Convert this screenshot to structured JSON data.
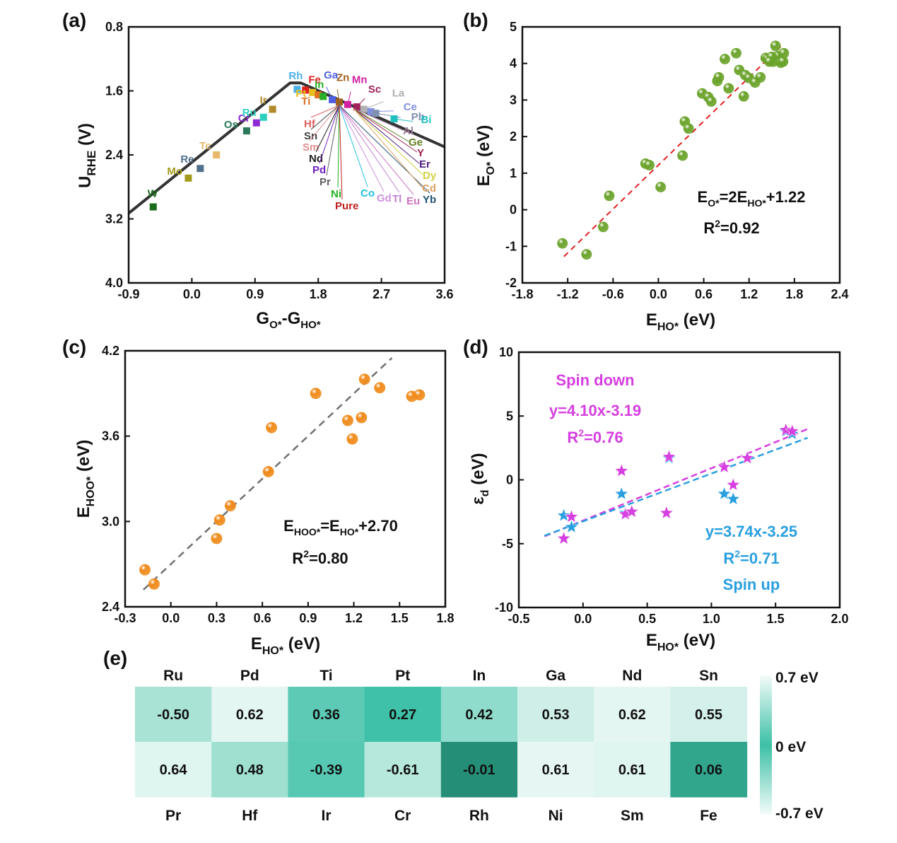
{
  "panel_labels": [
    "(a)",
    "(b)",
    "(c)",
    "(d)",
    "(e)"
  ],
  "chart_data": [
    {
      "panel": "(a)",
      "type": "line",
      "xlabel_main": "G",
      "xlabel_sub1": "O*",
      "xlabel_mid": "-G",
      "xlabel_sub2": "HO*",
      "ylabel_main": "U",
      "ylabel_sub": "RHE",
      "ylabel_unit": " (V)",
      "xlim": [
        -0.9,
        3.6
      ],
      "ylim": [
        4.0,
        0.8
      ],
      "y_inverted": true,
      "xticks": [
        "-0.9",
        "0.0",
        "0.9",
        "1.8",
        "2.7",
        "3.6"
      ],
      "yticks": [
        "0.8",
        "1.6",
        "2.4",
        "3.2",
        "4.0"
      ],
      "volcano_line": [
        [
          -0.9,
          3.13
        ],
        [
          1.4,
          1.5
        ],
        [
          1.55,
          1.5
        ],
        [
          3.6,
          2.3
        ]
      ],
      "points": [
        {
          "name": "W",
          "x": -0.55,
          "y": 3.05,
          "color": "#1a6b1a"
        },
        {
          "name": "Mo",
          "x": -0.05,
          "y": 2.69,
          "color": "#a39a1e"
        },
        {
          "name": "Re",
          "x": 0.12,
          "y": 2.57,
          "color": "#4f6f8a"
        },
        {
          "name": "Tc",
          "x": 0.35,
          "y": 2.4,
          "color": "#e8b86a"
        },
        {
          "name": "Os",
          "x": 0.78,
          "y": 2.1,
          "color": "#2a7a5a"
        },
        {
          "name": "Cr",
          "x": 0.92,
          "y": 2.0,
          "color": "#8e2ad6"
        },
        {
          "name": "Ru",
          "x": 1.02,
          "y": 1.93,
          "color": "#2fcfbf"
        },
        {
          "name": "Ir",
          "x": 1.15,
          "y": 1.83,
          "color": "#b08a2a"
        },
        {
          "name": "Rh",
          "x": 1.5,
          "y": 1.58,
          "color": "#4ab0e8"
        },
        {
          "name": "Fe",
          "x": 1.62,
          "y": 1.59,
          "color": "#e02020"
        },
        {
          "name": "Pt",
          "x": 1.72,
          "y": 1.62,
          "color": "#e8c020"
        },
        {
          "name": "Ti",
          "x": 1.8,
          "y": 1.65,
          "color": "#e07020"
        },
        {
          "name": "In",
          "x": 1.87,
          "y": 1.67,
          "color": "#28b028"
        },
        {
          "name": "Ga",
          "x": 2.0,
          "y": 1.71,
          "color": "#5060e0"
        },
        {
          "name": "Zn",
          "x": 2.1,
          "y": 1.74,
          "color": "#a06020"
        },
        {
          "name": "Mn",
          "x": 2.22,
          "y": 1.77,
          "color": "#d020a0"
        },
        {
          "name": "Sc",
          "x": 2.35,
          "y": 1.8,
          "color": "#a0205a"
        },
        {
          "name": "La",
          "x": 2.45,
          "y": 1.83,
          "color": "#b0b0b0"
        },
        {
          "name": "Ce",
          "x": 2.55,
          "y": 1.86,
          "color": "#8090e0"
        },
        {
          "name": "Pb",
          "x": 2.62,
          "y": 1.88,
          "color": "#8090b0"
        },
        {
          "name": "Bi",
          "x": 2.88,
          "y": 1.95,
          "color": "#20c0c0"
        }
      ],
      "labels_left": [
        {
          "name": "Hf",
          "color": "#e06060"
        },
        {
          "name": "Sn",
          "color": "#404040"
        },
        {
          "name": "Sm",
          "color": "#e09090"
        },
        {
          "name": "Nd",
          "color": "#202020"
        },
        {
          "name": "Pd",
          "color": "#7020c0"
        },
        {
          "name": "Pr",
          "color": "#606060"
        },
        {
          "name": "Ni",
          "color": "#20b020"
        },
        {
          "name": "Pure",
          "color": "#c02020"
        },
        {
          "name": "Co",
          "color": "#20c0e0"
        },
        {
          "name": "Gd",
          "color": "#d090e0"
        },
        {
          "name": "Tl",
          "color": "#c080d0"
        },
        {
          "name": "Eu",
          "color": "#d070c0"
        },
        {
          "name": "Yb",
          "color": "#205070"
        }
      ],
      "labels_right": [
        {
          "name": "Al",
          "color": "#a080a0"
        },
        {
          "name": "Ge",
          "color": "#608020"
        },
        {
          "name": "Y",
          "color": "#a02050"
        },
        {
          "name": "Er",
          "color": "#502080"
        },
        {
          "name": "Dy",
          "color": "#d0d040"
        },
        {
          "name": "Cd",
          "color": "#e0a060"
        }
      ]
    },
    {
      "panel": "(b)",
      "type": "scatter",
      "xlabel_main": "E",
      "xlabel_sub": "HO*",
      "xlabel_unit": " (eV)",
      "ylabel_main": "E",
      "ylabel_sub": "O*",
      "ylabel_unit": " (eV)",
      "xlim": [
        -1.8,
        2.4
      ],
      "ylim": [
        -2,
        5
      ],
      "xticks": [
        "-1.8",
        "-1.2",
        "-0.6",
        "0.0",
        "0.6",
        "1.2",
        "1.8",
        "2.4"
      ],
      "yticks": [
        "-2",
        "-1",
        "0",
        "1",
        "2",
        "3",
        "4",
        "5"
      ],
      "point_color": "#6aa32a",
      "fit_line": {
        "x": [
          -1.25,
          1.62
        ],
        "color": "#e02020",
        "slope": 2,
        "intercept": 1.22
      },
      "equation_parts": [
        "E",
        "O*",
        "=2E",
        "HO*",
        "+1.22"
      ],
      "r2_parts": [
        "R",
        "2",
        "=0.92"
      ],
      "x": [
        -1.27,
        -0.95,
        -0.73,
        -0.65,
        -0.17,
        -0.12,
        0.03,
        0.32,
        0.35,
        0.4,
        0.58,
        0.66,
        0.7,
        0.78,
        0.8,
        0.88,
        0.93,
        1.03,
        1.07,
        1.13,
        1.15,
        1.2,
        1.28,
        1.35,
        1.42,
        1.45,
        1.52,
        1.55,
        1.58,
        1.62,
        1.65,
        1.66,
        1.5,
        1.47
      ],
      "y": [
        -0.92,
        -1.22,
        -0.47,
        0.38,
        1.26,
        1.22,
        0.62,
        1.48,
        2.41,
        2.22,
        3.18,
        3.08,
        2.96,
        3.52,
        3.62,
        4.12,
        3.32,
        4.28,
        3.82,
        3.1,
        3.68,
        3.6,
        3.48,
        3.62,
        4.15,
        4.12,
        4.05,
        4.48,
        4.2,
        4.02,
        4.05,
        4.28,
        4.18,
        4.05
      ]
    },
    {
      "panel": "(c)",
      "type": "scatter",
      "xlabel_main": "E",
      "xlabel_sub": "HO*",
      "xlabel_unit": " (eV)",
      "ylabel_main": "E",
      "ylabel_sub": "HOO*",
      "ylabel_unit": " (eV)",
      "xlim": [
        -0.3,
        1.8
      ],
      "ylim": [
        2.4,
        4.2
      ],
      "xticks": [
        "-0.3",
        "0.0",
        "0.3",
        "0.6",
        "0.9",
        "1.2",
        "1.5",
        "1.8"
      ],
      "yticks": [
        "2.4",
        "3.0",
        "3.6",
        "4.2"
      ],
      "point_color": "#f08a1a",
      "fit_line": {
        "x": [
          -0.18,
          1.45
        ],
        "color": "#707070",
        "slope": 1,
        "intercept": 2.7
      },
      "equation_parts": [
        "E",
        "HOO*",
        "=E",
        "HO*",
        "+2.70"
      ],
      "r2_parts": [
        "R",
        "2",
        "=0.80"
      ],
      "x": [
        -0.17,
        -0.11,
        0.3,
        0.32,
        0.39,
        0.64,
        0.66,
        0.95,
        1.16,
        1.19,
        1.25,
        1.27,
        1.37,
        1.58,
        1.63
      ],
      "y": [
        2.66,
        2.56,
        2.88,
        3.01,
        3.11,
        3.35,
        3.66,
        3.9,
        3.71,
        3.58,
        3.73,
        4.0,
        3.94,
        3.88,
        3.89
      ]
    },
    {
      "panel": "(d)",
      "type": "scatter",
      "xlabel_main": "E",
      "xlabel_sub": "HO*",
      "xlabel_unit": " (eV)",
      "ylabel_main": "ε",
      "ylabel_sub": "d",
      "ylabel_unit": " (eV)",
      "xlim": [
        -0.5,
        2.0
      ],
      "ylim": [
        -10,
        10
      ],
      "xticks": [
        "-0.5",
        "0.0",
        "0.5",
        "1.0",
        "1.5",
        "2.0"
      ],
      "yticks": [
        "-10",
        "-5",
        "0",
        "5",
        "10"
      ],
      "series": [
        {
          "name": "Spin down",
          "color": "#d63fe0",
          "fit_label": "y=4.10x-3.19",
          "r2_parts": [
            "R",
            "2",
            "=0.76"
          ],
          "fit_line": {
            "x": [
              -0.3,
              1.75
            ],
            "slope": 4.1,
            "intercept": -3.19
          },
          "x": [
            -0.15,
            -0.09,
            0.3,
            0.33,
            0.38,
            0.65,
            0.67,
            1.1,
            1.17,
            1.28,
            1.58,
            1.63
          ],
          "y": [
            -4.6,
            -2.9,
            0.7,
            -2.7,
            -2.5,
            -2.6,
            1.8,
            1.0,
            -0.4,
            1.7,
            3.9,
            3.8
          ]
        },
        {
          "name": "Spin up",
          "color": "#2a9fe0",
          "fit_label": "y=3.74x-3.25",
          "r2_parts": [
            "R",
            "2",
            "=0.71"
          ],
          "fit_line": {
            "x": [
              -0.3,
              1.75
            ],
            "slope": 3.74,
            "intercept": -3.25
          },
          "x": [
            -0.15,
            -0.09,
            0.3,
            0.33,
            0.38,
            0.65,
            0.67,
            1.1,
            1.17,
            1.28,
            1.58,
            1.63
          ],
          "y": [
            -2.8,
            -3.7,
            -1.1,
            -2.6,
            -2.5,
            -2.6,
            1.7,
            -1.1,
            -1.5,
            1.7,
            3.8,
            3.6
          ]
        }
      ]
    },
    {
      "panel": "(e)",
      "type": "heatmap",
      "top_labels": [
        "Ru",
        "Pd",
        "Ti",
        "Pt",
        "In",
        "Ga",
        "Nd",
        "Sn"
      ],
      "bottom_labels": [
        "Pr",
        "Hf",
        "Ir",
        "Cr",
        "Rh",
        "Ni",
        "Sm",
        "Fe"
      ],
      "rows": [
        [
          "-0.50",
          "0.62",
          "0.36",
          "0.27",
          "0.42",
          "0.53",
          "0.62",
          "0.55"
        ],
        [
          "0.64",
          "0.48",
          "-0.39",
          "-0.61",
          "-0.01",
          "0.61",
          "0.61",
          "0.06"
        ]
      ],
      "cell_colors": [
        [
          "#a9e3d6",
          "#e4f6f2",
          "#5ccab5",
          "#3fc0a8",
          "#90dccc",
          "#cfeee7",
          "#e4f6f2",
          "#d3f0ea"
        ],
        [
          "#dff5f0",
          "#9fe0d1",
          "#57c9b3",
          "#b6e8dc",
          "#258e76",
          "#e6f7f3",
          "#dff5f0",
          "#32a58d"
        ]
      ],
      "colorbar": {
        "max_label": "0.7 eV",
        "mid_label": "0 eV",
        "min_label": "-0.7 eV",
        "colors": [
          "#f4fcfa",
          "#3cc0a6",
          "#f4fcfa"
        ]
      }
    }
  ]
}
